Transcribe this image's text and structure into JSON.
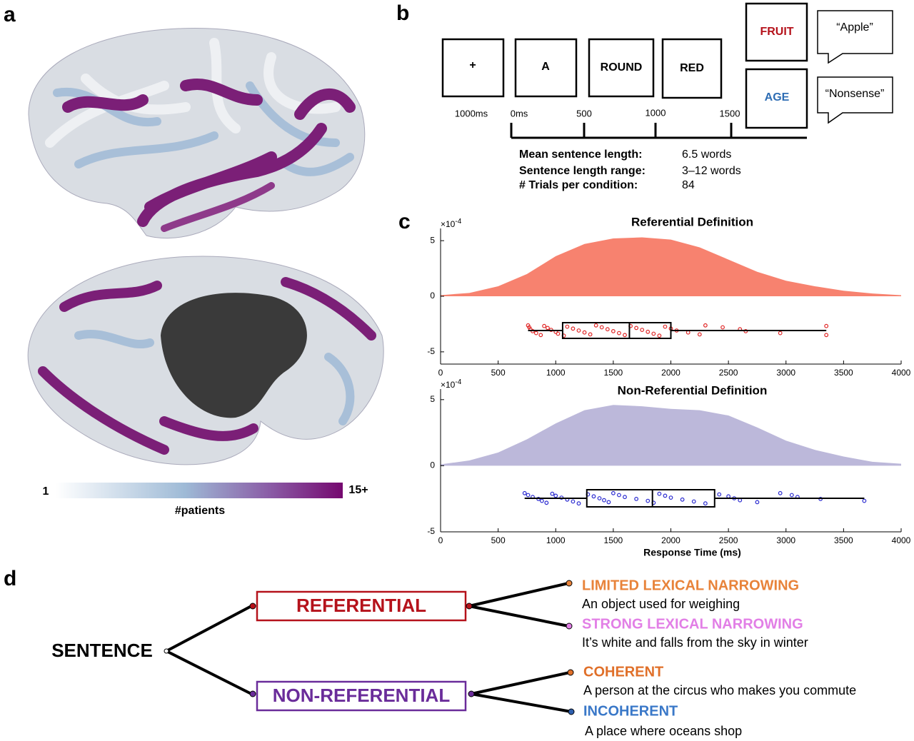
{
  "panels": {
    "a": "a",
    "b": "b",
    "c": "c",
    "d": "d"
  },
  "colorbar": {
    "min_label": "1",
    "max_label": "15+",
    "label": "#patients"
  },
  "task": {
    "frames": [
      "+",
      "A",
      "ROUND",
      "RED"
    ],
    "probes": [
      "FRUIT",
      "AGE"
    ],
    "responses": [
      "“Apple”",
      "“Nonsense”"
    ],
    "times": [
      "1000ms",
      "0ms",
      "500",
      "1000",
      "1500"
    ],
    "stats": [
      [
        "Mean sentence length:",
        "6.5 words"
      ],
      [
        "Sentence length range:",
        "3–12 words"
      ],
      [
        "# Trials per condition:",
        "84"
      ]
    ]
  },
  "chart_data": [
    {
      "type": "density",
      "title": "Referential Definition",
      "color": "#f7826f",
      "point_color": "#e02626",
      "exponent": {
        "base": "×10",
        "power": "-4"
      },
      "x": [
        0,
        250,
        500,
        750,
        1000,
        1250,
        1500,
        1750,
        2000,
        2250,
        2500,
        2750,
        3000,
        3250,
        3500,
        3750,
        4000
      ],
      "values": [
        0.1,
        0.3,
        0.9,
        2.0,
        3.6,
        4.7,
        5.2,
        5.3,
        5.1,
        4.4,
        3.3,
        2.2,
        1.4,
        0.9,
        0.5,
        0.25,
        0.1
      ],
      "box": {
        "whisker_low": 760,
        "q1": 1060,
        "median": 1640,
        "q3": 2000,
        "whisker_high": 3350
      },
      "points": [
        760,
        770,
        780,
        800,
        830,
        870,
        900,
        930,
        960,
        1000,
        1020,
        1070,
        1100,
        1150,
        1200,
        1250,
        1300,
        1350,
        1400,
        1450,
        1500,
        1550,
        1600,
        1650,
        1700,
        1750,
        1800,
        1850,
        1900,
        1950,
        2000,
        2050,
        2150,
        2250,
        2300,
        2450,
        2600,
        2650,
        2950,
        3350,
        3350
      ],
      "xlim": [
        0,
        4000
      ],
      "xticks": [
        0,
        500,
        1000,
        1500,
        2000,
        2500,
        3000,
        3500,
        4000
      ],
      "ylim": [
        -6.1,
        6.1
      ],
      "yticks": [
        -5,
        0,
        5
      ]
    },
    {
      "type": "density",
      "title": "Non-Referential Definition",
      "xlabel": "Response Time (ms)",
      "color": "#bcb8da",
      "point_color": "#2a2ad0",
      "exponent": {
        "base": "×10",
        "power": "-4"
      },
      "x": [
        0,
        250,
        500,
        750,
        1000,
        1250,
        1500,
        1750,
        2000,
        2250,
        2500,
        2750,
        3000,
        3250,
        3500,
        3750,
        4000
      ],
      "values": [
        0.1,
        0.4,
        1.0,
        2.0,
        3.2,
        4.2,
        4.6,
        4.5,
        4.3,
        4.2,
        3.8,
        2.9,
        1.9,
        1.2,
        0.7,
        0.3,
        0.15
      ],
      "box": {
        "whisker_low": 730,
        "q1": 1270,
        "median": 1840,
        "q3": 2380,
        "whisker_high": 3680
      },
      "points": [
        730,
        760,
        800,
        850,
        880,
        920,
        970,
        1000,
        1050,
        1100,
        1150,
        1200,
        1280,
        1330,
        1380,
        1420,
        1460,
        1500,
        1550,
        1600,
        1700,
        1800,
        1850,
        1900,
        1950,
        2000,
        2100,
        2200,
        2300,
        2420,
        2500,
        2550,
        2600,
        2750,
        2950,
        3050,
        3100,
        3300,
        3680
      ],
      "xlim": [
        0,
        4000
      ],
      "xticks": [
        0,
        500,
        1000,
        1500,
        2000,
        2500,
        3000,
        3500,
        4000
      ],
      "ylim": [
        -5,
        5.8
      ],
      "yticks": [
        -5,
        0,
        5
      ]
    }
  ],
  "tree": {
    "root": "SENTENCE",
    "branches": [
      {
        "label": "REFERENTIAL",
        "children": [
          {
            "label": "LIMITED LEXICAL NARROWING",
            "example": "An object used for weighing"
          },
          {
            "label": "STRONG LEXICAL NARROWING",
            "example": "It’s white and falls from the sky in winter"
          }
        ]
      },
      {
        "label": "NON-REFERENTIAL",
        "children": [
          {
            "label": "COHERENT",
            "example": "A person at the circus who makes you commute"
          },
          {
            "label": "INCOHERENT",
            "example": "A place where oceans shop"
          }
        ]
      }
    ]
  }
}
